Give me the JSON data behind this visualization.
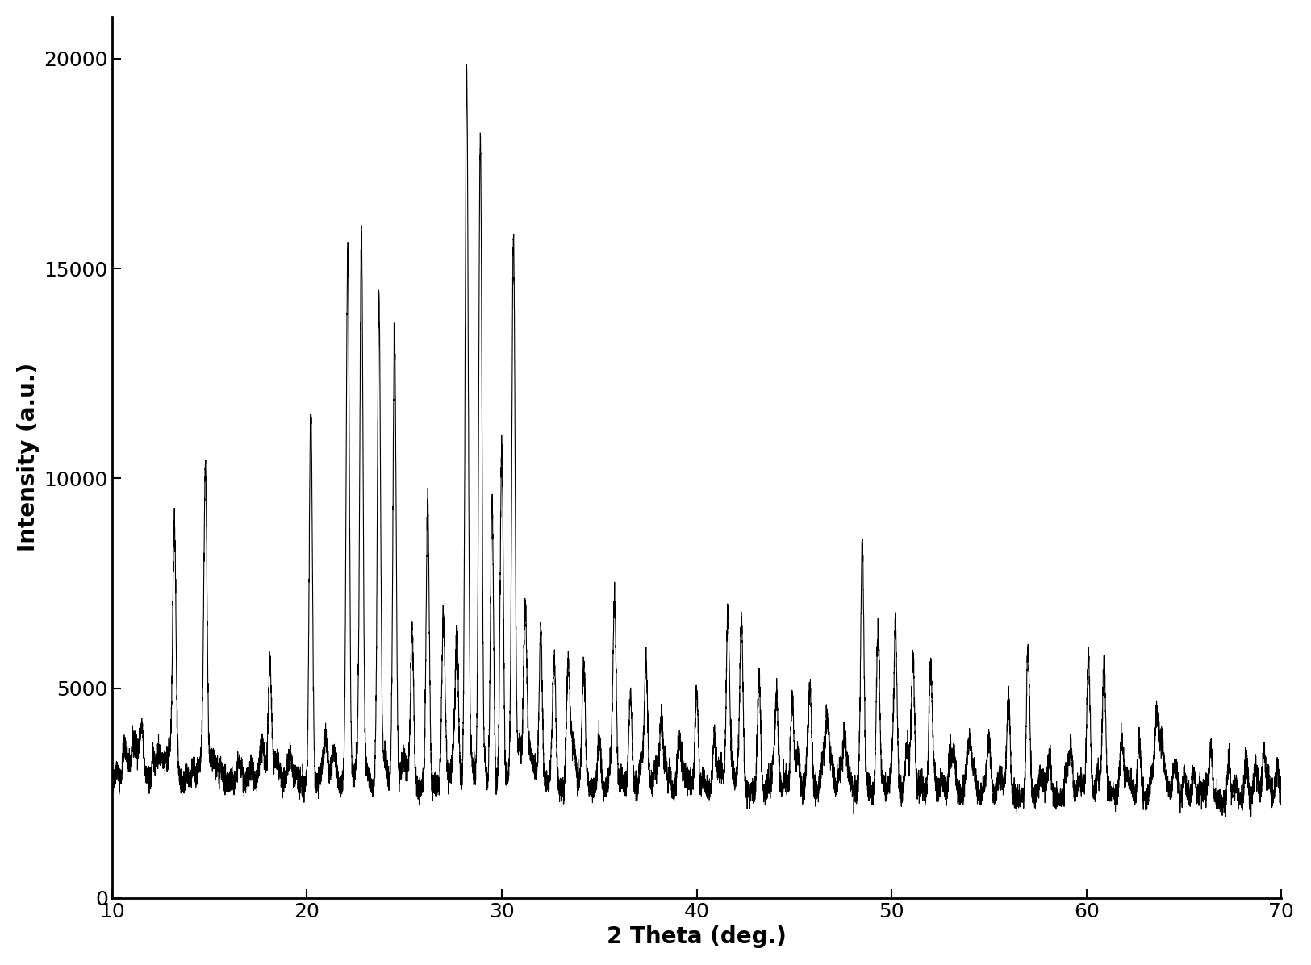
{
  "xlabel": "2 Theta (deg.)",
  "ylabel": "Intensity (a.u.)",
  "xlim": [
    10,
    70
  ],
  "ylim": [
    0,
    21000
  ],
  "yticks": [
    0,
    5000,
    10000,
    15000,
    20000
  ],
  "xticks": [
    10,
    20,
    30,
    40,
    50,
    60,
    70
  ],
  "background_color": "#ffffff",
  "line_color": "#000000",
  "xlabel_fontsize": 20,
  "ylabel_fontsize": 20,
  "tick_fontsize": 18,
  "peaks": [
    [
      11.5,
      3400
    ],
    [
      13.2,
      8500
    ],
    [
      14.8,
      10000
    ],
    [
      16.5,
      2900
    ],
    [
      17.2,
      2900
    ],
    [
      18.1,
      5300
    ],
    [
      19.0,
      3000
    ],
    [
      20.2,
      11500
    ],
    [
      21.5,
      2800
    ],
    [
      22.1,
      15300
    ],
    [
      22.8,
      15300
    ],
    [
      23.7,
      14100
    ],
    [
      24.5,
      13400
    ],
    [
      25.4,
      6500
    ],
    [
      26.2,
      9500
    ],
    [
      27.0,
      6300
    ],
    [
      27.7,
      6300
    ],
    [
      28.2,
      19900
    ],
    [
      28.9,
      18200
    ],
    [
      29.5,
      9600
    ],
    [
      30.0,
      11000
    ],
    [
      30.6,
      15100
    ],
    [
      31.2,
      6600
    ],
    [
      32.0,
      6600
    ],
    [
      32.7,
      5700
    ],
    [
      33.4,
      5000
    ],
    [
      34.2,
      5300
    ],
    [
      35.0,
      4000
    ],
    [
      35.8,
      6300
    ],
    [
      36.6,
      5000
    ],
    [
      37.4,
      5700
    ],
    [
      38.2,
      4300
    ],
    [
      39.1,
      3700
    ],
    [
      40.0,
      5200
    ],
    [
      40.9,
      3700
    ],
    [
      41.6,
      6700
    ],
    [
      42.3,
      6600
    ],
    [
      43.2,
      5500
    ],
    [
      44.1,
      5200
    ],
    [
      44.9,
      5000
    ],
    [
      45.8,
      4200
    ],
    [
      46.7,
      4100
    ],
    [
      47.6,
      3900
    ],
    [
      48.5,
      8000
    ],
    [
      49.3,
      6400
    ],
    [
      50.2,
      5900
    ],
    [
      51.1,
      5800
    ],
    [
      52.0,
      5700
    ],
    [
      53.0,
      3800
    ],
    [
      54.0,
      3800
    ],
    [
      55.0,
      3700
    ],
    [
      56.0,
      4800
    ],
    [
      57.0,
      5500
    ],
    [
      58.1,
      3800
    ],
    [
      59.2,
      3700
    ],
    [
      60.1,
      5400
    ],
    [
      60.9,
      5300
    ],
    [
      61.8,
      3900
    ],
    [
      62.7,
      4000
    ],
    [
      63.6,
      3800
    ],
    [
      64.5,
      3600
    ],
    [
      65.5,
      3500
    ],
    [
      66.4,
      3600
    ],
    [
      67.3,
      3700
    ],
    [
      68.2,
      3800
    ],
    [
      69.1,
      4000
    ],
    [
      69.8,
      3500
    ]
  ],
  "baseline": 2800,
  "noise_amplitude": 150,
  "extra_bumps": 200,
  "peak_sigma": 0.08
}
